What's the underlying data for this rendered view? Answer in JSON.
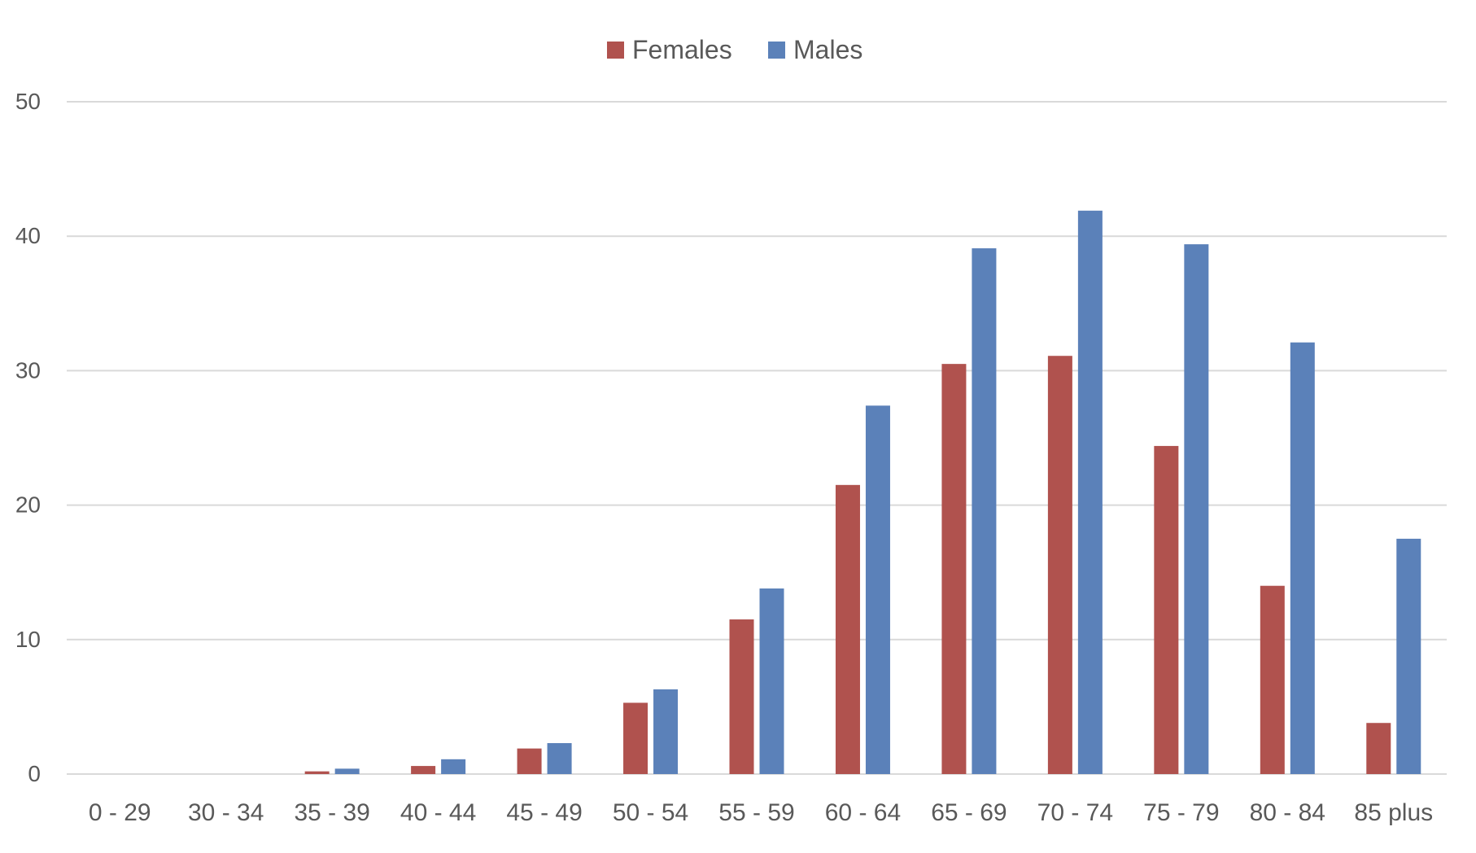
{
  "chart_data": {
    "type": "bar",
    "title": "",
    "xlabel": "",
    "ylabel": "",
    "categories": [
      "0 - 29",
      "30 - 34",
      "35 - 39",
      "40 - 44",
      "45 - 49",
      "50 - 54",
      "55 - 59",
      "60 - 64",
      "65 - 69",
      "70 - 74",
      "75 - 79",
      "80 - 84",
      "85 plus"
    ],
    "series": [
      {
        "name": "Females",
        "color": "#B0524E",
        "values": [
          0,
          0,
          0.2,
          0.6,
          1.9,
          5.3,
          11.5,
          21.5,
          30.5,
          31.1,
          24.4,
          14.0,
          3.8
        ]
      },
      {
        "name": "Males",
        "color": "#5B81B9",
        "values": [
          0,
          0,
          0.4,
          1.1,
          2.3,
          6.3,
          13.8,
          27.4,
          39.1,
          41.9,
          39.4,
          32.1,
          17.5
        ]
      }
    ],
    "ylim": [
      0,
      50
    ],
    "yticks": [
      0,
      10,
      20,
      30,
      40,
      50
    ],
    "grid": true,
    "gridline_color": "#D9D9D9",
    "legend_position": "top-center"
  }
}
